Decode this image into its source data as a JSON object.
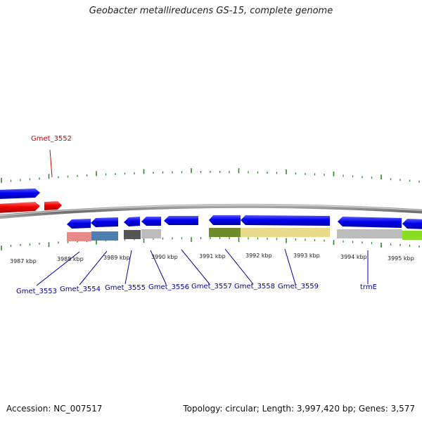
{
  "title": "Geobacter metallireducens GS-15, complete genome",
  "footer": {
    "accession": "Accession: NC_007517",
    "summary": "Topology: circular; Length: 3,997,420 bp; Genes: 3,577"
  },
  "scale": {
    "unit": "kbp",
    "labels": [
      "3987 kbp",
      "3988 kbp",
      "3989 kbp",
      "3990 kbp",
      "3991 kbp",
      "3992 kbp",
      "3993 kbp",
      "3994 kbp",
      "3995 kbp"
    ]
  },
  "gene_labels": {
    "top": [
      {
        "id": "Gmet_3552",
        "text": "Gmet_3552",
        "color": "#cc0000"
      }
    ],
    "bottom": [
      {
        "id": "Gmet_3553",
        "text": "Gmet_3553"
      },
      {
        "id": "Gmet_3554",
        "text": "Gmet_3554"
      },
      {
        "id": "Gmet_3555",
        "text": "Gmet_3555"
      },
      {
        "id": "Gmet_3556",
        "text": "Gmet_3556"
      },
      {
        "id": "Gmet_3557",
        "text": "Gmet_3557"
      },
      {
        "id": "Gmet_3558",
        "text": "Gmet_3558"
      },
      {
        "id": "Gmet_3559",
        "text": "Gmet_3559"
      },
      {
        "id": "trmE",
        "text": "trmE"
      }
    ],
    "bottom_color": "#00009c"
  },
  "colors": {
    "forward_gene": "#0000ee",
    "forward_rna": "#ee0000",
    "reverse_gene": "#0000ee",
    "backbone": "#8a8a8a",
    "ticks": "#2e8b2e",
    "domain_pink": "#e88a8a",
    "domain_blue": "#4a7fb0",
    "domain_dark": "#555555",
    "domain_grey": "#bcbcbc",
    "domain_olive": "#6e8c2a",
    "domain_khaki": "#e8dc8c",
    "domain_green": "#88dd22"
  }
}
